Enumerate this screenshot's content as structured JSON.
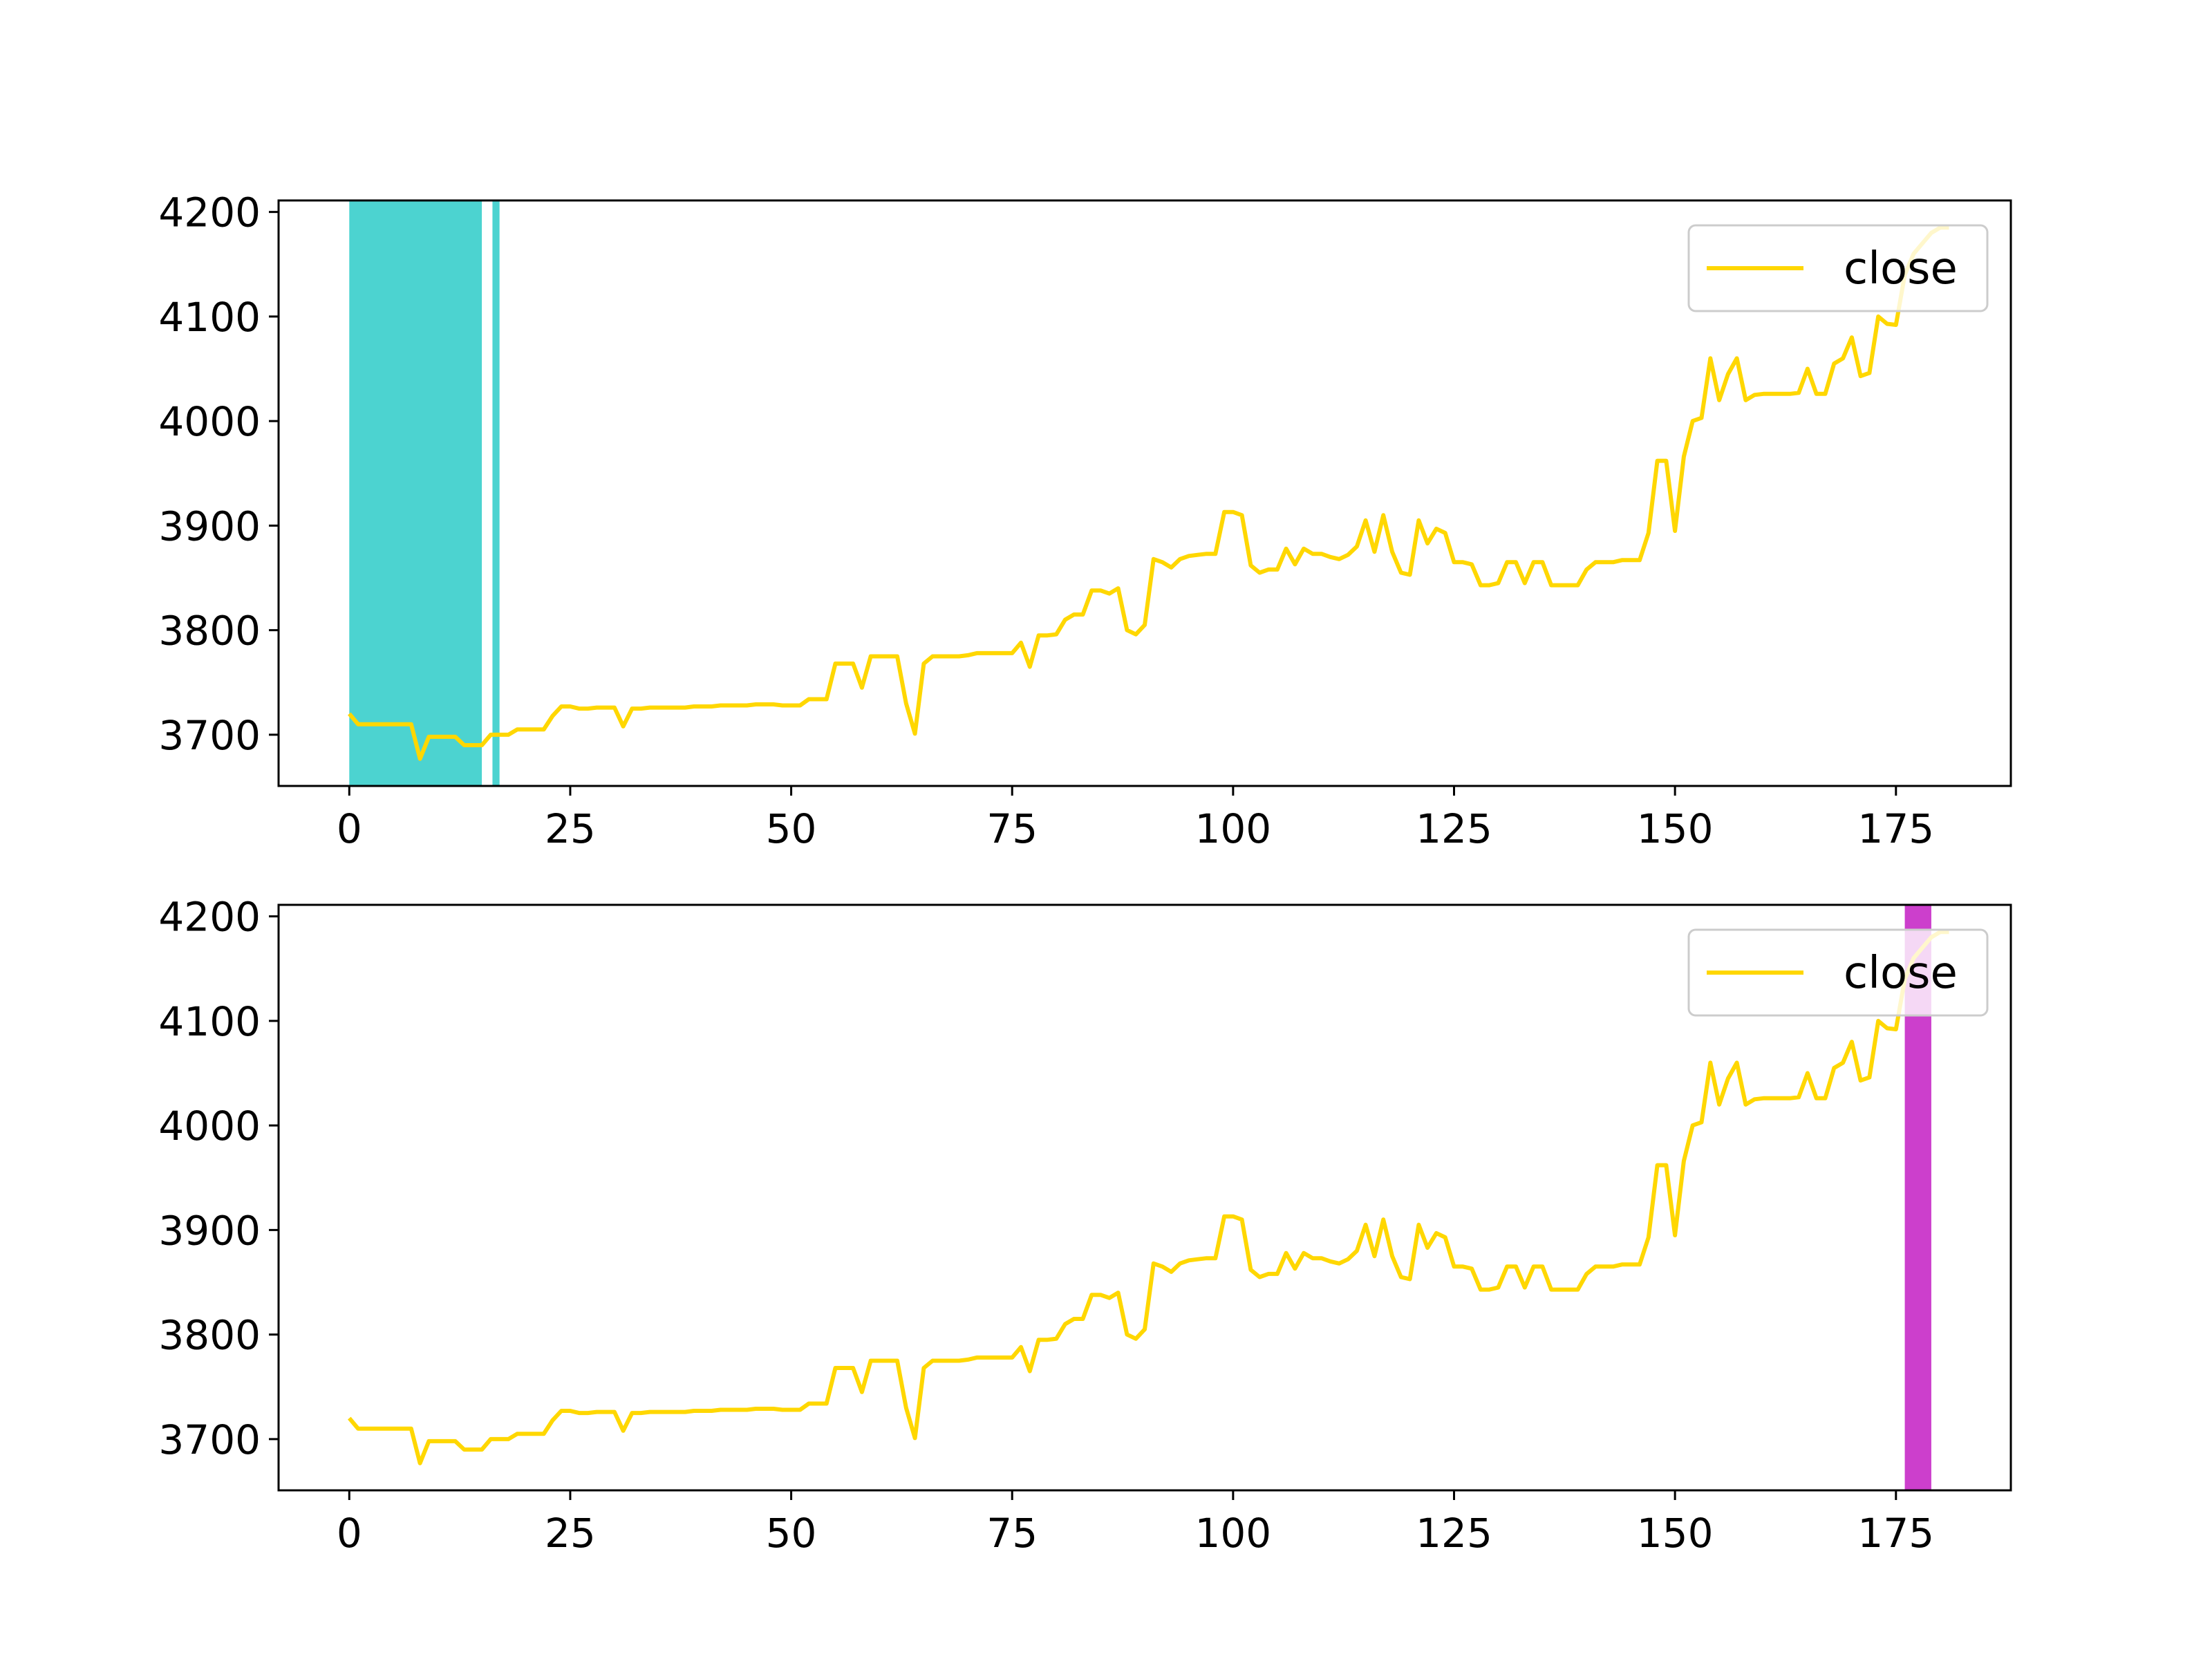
{
  "chart_data": [
    {
      "type": "line",
      "series": [
        {
          "name": "close",
          "color": "#FFD700",
          "y": [
            3720,
            3710,
            3710,
            3710,
            3710,
            3710,
            3710,
            3710,
            3677,
            3698,
            3698,
            3698,
            3698,
            3690,
            3690,
            3690,
            3700,
            3700,
            3700,
            3705,
            3705,
            3705,
            3705,
            3718,
            3727,
            3727,
            3725,
            3725,
            3726,
            3726,
            3726,
            3708,
            3725,
            3725,
            3726,
            3726,
            3726,
            3726,
            3726,
            3727,
            3727,
            3727,
            3728,
            3728,
            3728,
            3728,
            3729,
            3729,
            3729,
            3728,
            3728,
            3728,
            3734,
            3734,
            3734,
            3768,
            3768,
            3768,
            3745,
            3775,
            3775,
            3775,
            3775,
            3730,
            3701,
            3768,
            3775,
            3775,
            3775,
            3775,
            3776,
            3778,
            3778,
            3778,
            3778,
            3778,
            3788,
            3765,
            3795,
            3795,
            3796,
            3810,
            3815,
            3815,
            3838,
            3838,
            3835,
            3840,
            3800,
            3796,
            3805,
            3868,
            3865,
            3860,
            3868,
            3871,
            3872,
            3873,
            3873,
            3913,
            3913,
            3910,
            3862,
            3855,
            3858,
            3858,
            3878,
            3863,
            3878,
            3873,
            3873,
            3870,
            3868,
            3872,
            3880,
            3905,
            3875,
            3910,
            3875,
            3855,
            3853,
            3905,
            3883,
            3897,
            3893,
            3865,
            3865,
            3863,
            3843,
            3843,
            3845,
            3865,
            3865,
            3845,
            3865,
            3865,
            3843,
            3843,
            3843,
            3843,
            3858,
            3865,
            3865,
            3865,
            3867,
            3867,
            3867,
            3893,
            3962,
            3962,
            3895,
            3966,
            4000,
            4003,
            4060,
            4020,
            4045,
            4060,
            4020,
            4025,
            4026,
            4026,
            4026,
            4026,
            4027,
            4050,
            4026,
            4026,
            4055,
            4060,
            4080,
            4043,
            4046,
            4100,
            4093,
            4092,
            4140,
            4160,
            4170,
            4180,
            4185,
            4185
          ]
        }
      ],
      "highlight_ranges": [
        {
          "x0": 0,
          "x1": 15,
          "color": "#4CD3D0"
        },
        {
          "x0": 16.2,
          "x1": 17,
          "color": "#4CD3D0"
        }
      ],
      "xlim": [
        -8,
        188
      ],
      "ylim": [
        3651,
        4211
      ],
      "xticks": [
        0,
        25,
        50,
        75,
        100,
        125,
        150,
        175
      ],
      "yticks": [
        3700,
        3800,
        3900,
        4000,
        4100,
        4200
      ],
      "legend": {
        "label": "close",
        "position": "upper right"
      }
    },
    {
      "type": "line",
      "series_ref": 0,
      "series": [
        {
          "name": "close",
          "color": "#FFD700"
        }
      ],
      "highlight_ranges": [
        {
          "x0": 176,
          "x1": 179,
          "color": "#C31DC3"
        }
      ],
      "xlim": [
        -8,
        188
      ],
      "ylim": [
        3651,
        4211
      ],
      "xticks": [
        0,
        25,
        50,
        75,
        100,
        125,
        150,
        175
      ],
      "yticks": [
        3700,
        3800,
        3900,
        4000,
        4100,
        4200
      ],
      "legend": {
        "label": "close",
        "position": "upper right"
      }
    }
  ]
}
